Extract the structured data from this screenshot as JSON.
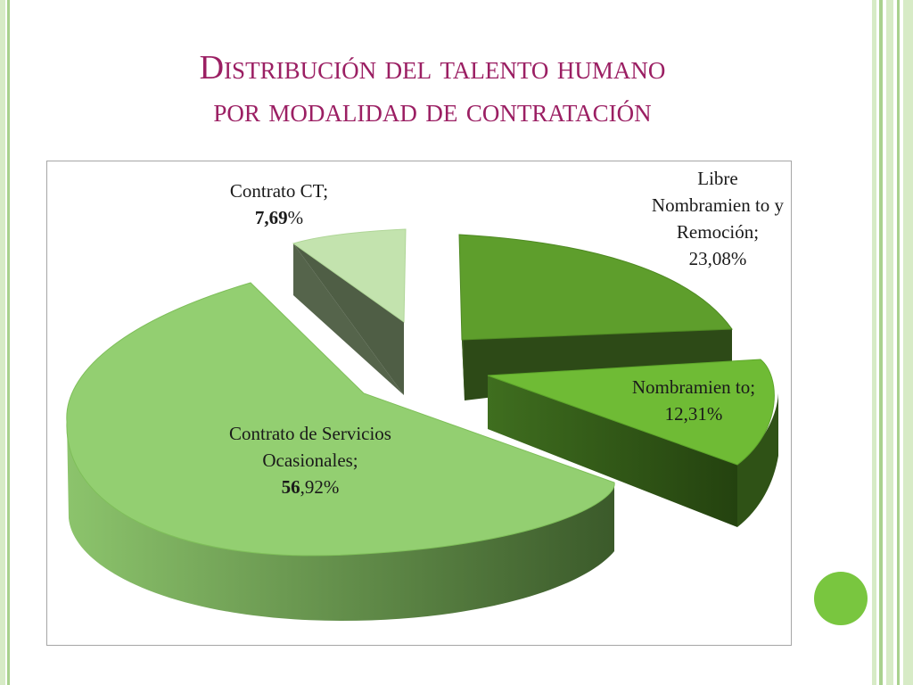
{
  "title": {
    "line1": "Distribución del talento humano",
    "line2": "por modalidad de contratación"
  },
  "colors": {
    "title": "#9b1f63",
    "accent_circle": "#79c63f",
    "stripe_light": "#d7ebc6",
    "stripe_mid": "#a9d18e"
  },
  "chart_data": {
    "type": "pie",
    "style": "3d-exploded",
    "legend": "none",
    "slices": [
      {
        "label": "Libre Nombramiento y Remoción",
        "value": 23.08,
        "label_text": "Libre Nombramien to y Remoción;",
        "value_text": "23,08%",
        "color": "#5e9e2c"
      },
      {
        "label": "Nombramiento",
        "value": 12.31,
        "label_text": "Nombramien to;",
        "value_text": "12,31%",
        "color": "#6fbb35"
      },
      {
        "label": "Contrato de Servicios Ocasionales",
        "value": 56.92,
        "label_text": "Contrato de Servicios Ocasionales;",
        "value_bold": "56",
        "value_rest": ",92%",
        "color": "#93cf71"
      },
      {
        "label": "Contrato CT",
        "value": 7.69,
        "label_text": "Contrato CT;",
        "value_bold": "7,69",
        "value_rest": "%",
        "color": "#c3e3ae"
      }
    ]
  }
}
